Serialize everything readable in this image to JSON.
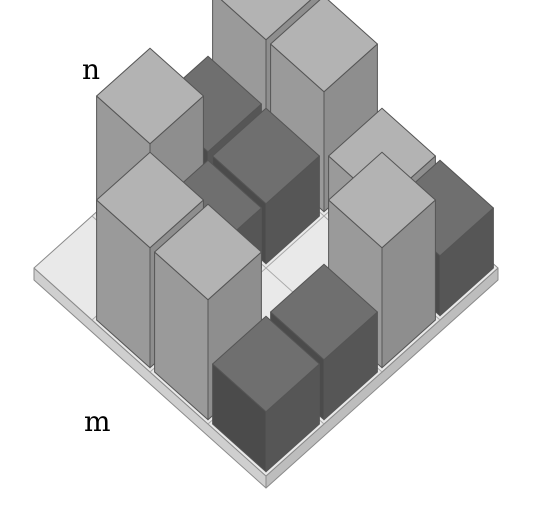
{
  "labels": {
    "top_left": "n",
    "bottom_left": "m"
  },
  "grid": {
    "size": 4,
    "note_heights_are_relative_block_heights": true,
    "cells": [
      [
        {
          "h": 2,
          "shade": "light"
        },
        {
          "h": 2,
          "shade": "light"
        },
        {
          "h": 1,
          "shade": "light"
        },
        {
          "h": 1,
          "shade": "dark"
        }
      ],
      [
        {
          "h": 1,
          "shade": "dark"
        },
        {
          "h": 1,
          "shade": "dark"
        },
        {
          "h": 0,
          "shade": "none"
        },
        {
          "h": 2,
          "shade": "light"
        }
      ],
      [
        {
          "h": 2,
          "shade": "light"
        },
        {
          "h": 1,
          "shade": "dark"
        },
        {
          "h": 0,
          "shade": "none"
        },
        {
          "h": 1,
          "shade": "dark"
        }
      ],
      [
        {
          "h": 0,
          "shade": "none"
        },
        {
          "h": 2,
          "shade": "light"
        },
        {
          "h": 2,
          "shade": "light"
        },
        {
          "h": 1,
          "shade": "dark"
        }
      ]
    ]
  },
  "colors": {
    "base_top": "#e9e9e9",
    "base_edge": "#8a8a8a",
    "light_top": "#b3b3b3",
    "light_left": "#9a9a9a",
    "light_right": "#8e8e8e",
    "dark_top": "#6f6f6f",
    "dark_left": "#4b4b4b",
    "dark_right": "#565656"
  }
}
